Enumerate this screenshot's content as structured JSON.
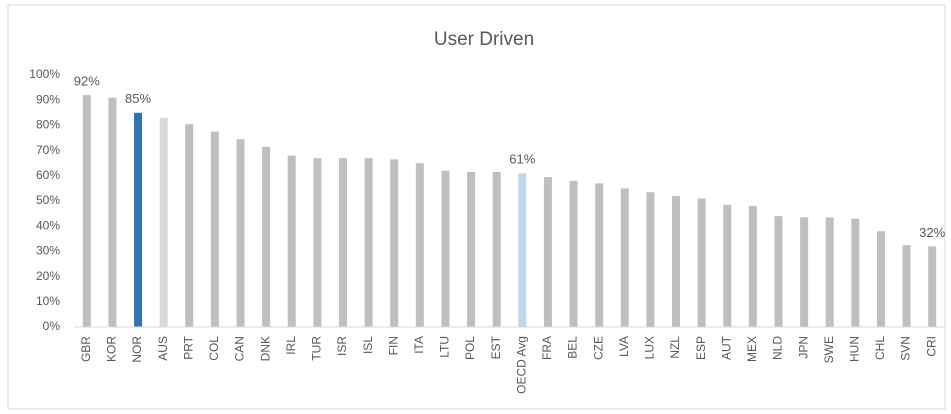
{
  "chart_data": {
    "type": "bar",
    "title": "User Driven",
    "categories": [
      "GBR",
      "KOR",
      "NOR",
      "AUS",
      "PRT",
      "COL",
      "CAN",
      "DNK",
      "IRL",
      "TUR",
      "ISR",
      "ISL",
      "FIN",
      "ITA",
      "LTU",
      "POL",
      "EST",
      "OECD Avg",
      "FRA",
      "BEL",
      "CZE",
      "LVA",
      "LUX",
      "NZL",
      "ESP",
      "AUT",
      "MEX",
      "NLD",
      "JPN",
      "SWE",
      "HUN",
      "CHL",
      "SVN",
      "CRI"
    ],
    "values": [
      92,
      91,
      85,
      83,
      80.5,
      77.5,
      74.5,
      71.5,
      68,
      67,
      67,
      67,
      66.5,
      65,
      62,
      61.5,
      61.5,
      61,
      59.5,
      58,
      57,
      55,
      53.5,
      52,
      51,
      48.5,
      48,
      44,
      43.5,
      43.5,
      43,
      38,
      32.5,
      32
    ],
    "value_labels": [
      "92%",
      null,
      "85%",
      null,
      null,
      null,
      null,
      null,
      null,
      null,
      null,
      null,
      null,
      null,
      null,
      null,
      null,
      "61%",
      null,
      null,
      null,
      null,
      null,
      null,
      null,
      null,
      null,
      null,
      null,
      null,
      null,
      null,
      null,
      "32%"
    ],
    "colors": [
      "#bfbfbf",
      "#bfbfbf",
      "#2e75b6",
      "#d9d9d9",
      "#bfbfbf",
      "#bfbfbf",
      "#bfbfbf",
      "#bfbfbf",
      "#bfbfbf",
      "#bfbfbf",
      "#bfbfbf",
      "#bfbfbf",
      "#bfbfbf",
      "#bfbfbf",
      "#bfbfbf",
      "#bfbfbf",
      "#bfbfbf",
      "#bdd7ee",
      "#bfbfbf",
      "#bfbfbf",
      "#bfbfbf",
      "#bfbfbf",
      "#bfbfbf",
      "#bfbfbf",
      "#bfbfbf",
      "#bfbfbf",
      "#bfbfbf",
      "#bfbfbf",
      "#bfbfbf",
      "#bfbfbf",
      "#bfbfbf",
      "#bfbfbf",
      "#bfbfbf",
      "#bfbfbf"
    ],
    "ylim": [
      0,
      100
    ],
    "yticks": [
      {
        "value": 0,
        "label": "0%"
      },
      {
        "value": 10,
        "label": "10%"
      },
      {
        "value": 20,
        "label": "20%"
      },
      {
        "value": 30,
        "label": "30%"
      },
      {
        "value": 40,
        "label": "40%"
      },
      {
        "value": 50,
        "label": "50%"
      },
      {
        "value": 60,
        "label": "60%"
      },
      {
        "value": 70,
        "label": "70%"
      },
      {
        "value": 80,
        "label": "80%"
      },
      {
        "value": 90,
        "label": "90%"
      },
      {
        "value": 100,
        "label": "100%"
      }
    ],
    "grid": false
  }
}
